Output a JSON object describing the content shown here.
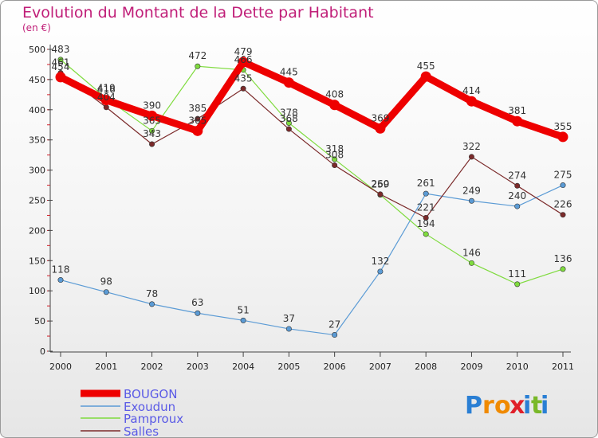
{
  "title": "Evolution du Montant de la Dette par Habitant",
  "unit_label": "(en €)",
  "logo": {
    "letters": [
      "P",
      "r",
      "o",
      "x",
      "i",
      "t",
      "i"
    ],
    "colors": [
      "#2a7fd4",
      "#f08a00",
      "#f08a00",
      "#e0202a",
      "#2a7fd4",
      "#79b829",
      "#2a7fd4"
    ]
  },
  "chart_data": {
    "type": "line",
    "title": "Evolution du Montant de la Dette par Habitant",
    "ylabel": "(en €)",
    "xlabel": "",
    "x": [
      "2000",
      "2001",
      "2002",
      "2003",
      "2004",
      "2005",
      "2006",
      "2007",
      "2008",
      "2009",
      "2010",
      "2011"
    ],
    "ylim": [
      0,
      500
    ],
    "yticks": [
      0,
      50,
      100,
      150,
      200,
      250,
      300,
      350,
      400,
      450,
      500
    ],
    "grid": false,
    "legend_position": "bottom-left",
    "series": [
      {
        "name": "BOUGON",
        "color": "#ee0000",
        "values": [
          454,
          416,
          390,
          365,
          479,
          445,
          408,
          369,
          455,
          414,
          381,
          355
        ],
        "width": 9
      },
      {
        "name": "Exoudun",
        "color": "#5b9bd5",
        "values": [
          118,
          98,
          78,
          63,
          51,
          37,
          27,
          132,
          261,
          249,
          240,
          275
        ],
        "width": 1.2
      },
      {
        "name": "Pamproux",
        "color": "#7fdb3e",
        "values": [
          483,
          419,
          365,
          472,
          466,
          378,
          318,
          259,
          194,
          146,
          111,
          136
        ],
        "width": 1.2
      },
      {
        "name": "Salles",
        "color": "#7b2a2a",
        "values": [
          461,
          404,
          343,
          385,
          435,
          368,
          308,
          260,
          221,
          322,
          274,
          226
        ],
        "width": 1.2
      }
    ]
  }
}
